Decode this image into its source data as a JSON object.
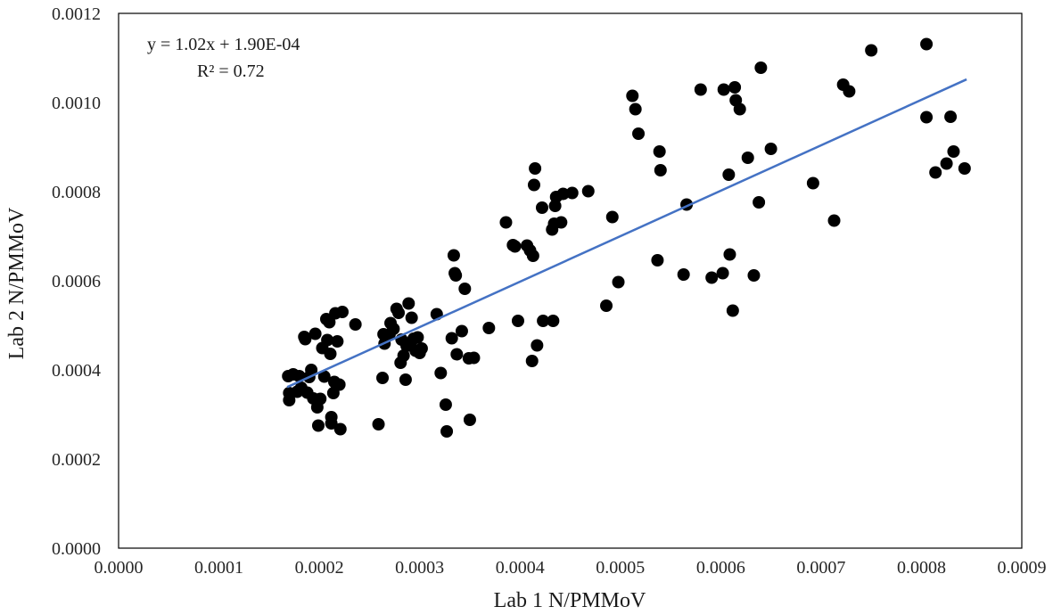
{
  "chart_data": {
    "type": "scatter",
    "xlabel": "Lab 1 N/PMMoV",
    "ylabel": "Lab 2 N/PMMoV",
    "xlim": [
      0,
      0.0009
    ],
    "ylim": [
      0,
      0.0012
    ],
    "x_ticks": [
      "0.0000",
      "0.0001",
      "0.0002",
      "0.0003",
      "0.0004",
      "0.0005",
      "0.0006",
      "0.0007",
      "0.0008",
      "0.0009"
    ],
    "y_ticks": [
      "0.0000",
      "0.0002",
      "0.0004",
      "0.0006",
      "0.0008",
      "0.0010",
      "0.0012"
    ],
    "grid": false,
    "legend": "none",
    "marker_color": "#000000",
    "trendline": {
      "slope": 1.02,
      "intercept": 0.00019,
      "x_range": [
        0.000168,
        0.000845
      ],
      "color": "#4472c4",
      "equation_label": "y = 1.02x + 1.90E-04",
      "r2_label": "R² = 0.72"
    },
    "points": [
      [
        0.000169,
        0.000386
      ],
      [
        0.00017,
        0.000348
      ],
      [
        0.00017,
        0.000332
      ],
      [
        0.000174,
        0.00039
      ],
      [
        0.000178,
        0.000351
      ],
      [
        0.00018,
        0.000386
      ],
      [
        0.000182,
        0.00036
      ],
      [
        0.000185,
        0.000474
      ],
      [
        0.000186,
        0.000469
      ],
      [
        0.000188,
        0.000349
      ],
      [
        0.00019,
        0.000384
      ],
      [
        0.000192,
        0.0004
      ],
      [
        0.000194,
        0.000336
      ],
      [
        0.000196,
        0.000481
      ],
      [
        0.000198,
        0.000316
      ],
      [
        0.000199,
        0.000275
      ],
      [
        0.000201,
        0.000335
      ],
      [
        0.000203,
        0.000449
      ],
      [
        0.000205,
        0.000385
      ],
      [
        0.000207,
        0.000514
      ],
      [
        0.000208,
        0.000467
      ],
      [
        0.00021,
        0.000507
      ],
      [
        0.000211,
        0.000436
      ],
      [
        0.000212,
        0.000294
      ],
      [
        0.000212,
        0.00028
      ],
      [
        0.000214,
        0.000348
      ],
      [
        0.000215,
        0.000373
      ],
      [
        0.000216,
        0.000527
      ],
      [
        0.000218,
        0.000464
      ],
      [
        0.00022,
        0.000367
      ],
      [
        0.000221,
        0.000267
      ],
      [
        0.000223,
        0.00053
      ],
      [
        0.000236,
        0.000502
      ],
      [
        0.000259,
        0.000278
      ],
      [
        0.000263,
        0.000382
      ],
      [
        0.000264,
        0.00048
      ],
      [
        0.000265,
        0.000459
      ],
      [
        0.00027,
        0.00048
      ],
      [
        0.000271,
        0.000505
      ],
      [
        0.000274,
        0.000492
      ],
      [
        0.000277,
        0.000537
      ],
      [
        0.000279,
        0.000528
      ],
      [
        0.000281,
        0.000416
      ],
      [
        0.000282,
        0.000468
      ],
      [
        0.000284,
        0.000432
      ],
      [
        0.000286,
        0.000378
      ],
      [
        0.000287,
        0.000454
      ],
      [
        0.000289,
        0.000549
      ],
      [
        0.000291,
        0.000458
      ],
      [
        0.000292,
        0.000517
      ],
      [
        0.000294,
        0.00047
      ],
      [
        0.000296,
        0.000443
      ],
      [
        0.000298,
        0.000473
      ],
      [
        0.0003,
        0.000438
      ],
      [
        0.000302,
        0.000448
      ],
      [
        0.000317,
        0.000525
      ],
      [
        0.000321,
        0.000393
      ],
      [
        0.000326,
        0.000322
      ],
      [
        0.000327,
        0.000262
      ],
      [
        0.000332,
        0.000471
      ],
      [
        0.000334,
        0.000657
      ],
      [
        0.000335,
        0.000617
      ],
      [
        0.000336,
        0.000612
      ],
      [
        0.000337,
        0.000435
      ],
      [
        0.000342,
        0.000487
      ],
      [
        0.000345,
        0.000582
      ],
      [
        0.000349,
        0.000426
      ],
      [
        0.00035,
        0.000288
      ],
      [
        0.000354,
        0.000427
      ],
      [
        0.000369,
        0.000494
      ],
      [
        0.000386,
        0.000731
      ],
      [
        0.000393,
        0.00068
      ],
      [
        0.000395,
        0.000677
      ],
      [
        0.000398,
        0.00051
      ],
      [
        0.000407,
        0.000679
      ],
      [
        0.00041,
        0.000668
      ],
      [
        0.000412,
        0.00042
      ],
      [
        0.000413,
        0.000656
      ],
      [
        0.000414,
        0.000815
      ],
      [
        0.000415,
        0.000852
      ],
      [
        0.000417,
        0.000455
      ],
      [
        0.000422,
        0.000764
      ],
      [
        0.000423,
        0.00051
      ],
      [
        0.000432,
        0.000715
      ],
      [
        0.000433,
        0.00051
      ],
      [
        0.000434,
        0.000728
      ],
      [
        0.000435,
        0.000768
      ],
      [
        0.000436,
        0.000788
      ],
      [
        0.000441,
        0.000731
      ],
      [
        0.000443,
        0.000795
      ],
      [
        0.000452,
        0.000797
      ],
      [
        0.000468,
        0.000801
      ],
      [
        0.000486,
        0.000544
      ],
      [
        0.000492,
        0.000743
      ],
      [
        0.000498,
        0.000597
      ],
      [
        0.000512,
        0.001015
      ],
      [
        0.000515,
        0.000985
      ],
      [
        0.000518,
        0.00093
      ],
      [
        0.000537,
        0.000646
      ],
      [
        0.000539,
        0.00089
      ],
      [
        0.00054,
        0.000848
      ],
      [
        0.000563,
        0.000614
      ],
      [
        0.000566,
        0.000771
      ],
      [
        0.00058,
        0.001029
      ],
      [
        0.000591,
        0.000607
      ],
      [
        0.000602,
        0.000617
      ],
      [
        0.000603,
        0.001029
      ],
      [
        0.000608,
        0.000838
      ],
      [
        0.000609,
        0.000659
      ],
      [
        0.000612,
        0.000533
      ],
      [
        0.000614,
        0.001034
      ],
      [
        0.000615,
        0.001005
      ],
      [
        0.000619,
        0.000985
      ],
      [
        0.000627,
        0.000876
      ],
      [
        0.000633,
        0.000612
      ],
      [
        0.000638,
        0.000776
      ],
      [
        0.00064,
        0.001078
      ],
      [
        0.00065,
        0.000896
      ],
      [
        0.000692,
        0.000819
      ],
      [
        0.000713,
        0.000735
      ],
      [
        0.000722,
        0.00104
      ],
      [
        0.000728,
        0.001025
      ],
      [
        0.00075,
        0.001117
      ],
      [
        0.000805,
        0.001131
      ],
      [
        0.000805,
        0.000967
      ],
      [
        0.000814,
        0.000843
      ],
      [
        0.000825,
        0.000863
      ],
      [
        0.000829,
        0.000968
      ],
      [
        0.000832,
        0.00089
      ],
      [
        0.000843,
        0.000852
      ]
    ]
  }
}
